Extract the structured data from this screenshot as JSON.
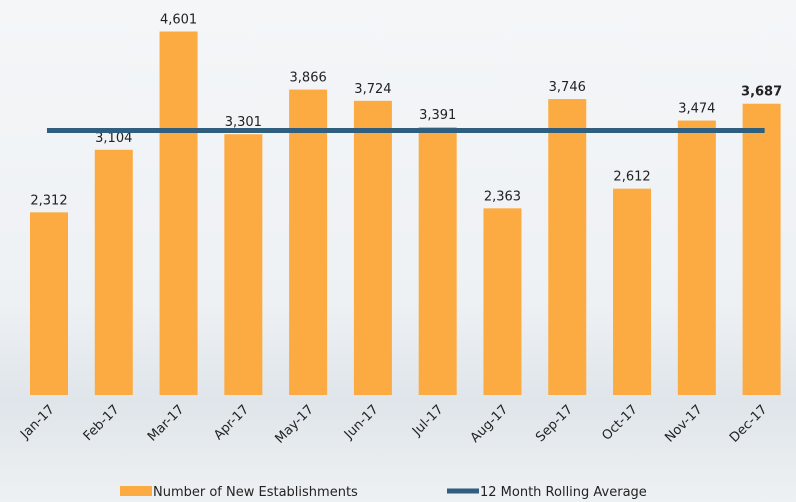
{
  "chart_data": {
    "type": "bar",
    "categories": [
      "Jan-17",
      "Feb-17",
      "Mar-17",
      "Apr-17",
      "May-17",
      "Jun-17",
      "Jul-17",
      "Aug-17",
      "Sep-17",
      "Oct-17",
      "Nov-17",
      "Dec-17"
    ],
    "series": [
      {
        "name": "Number of New Establishments",
        "type": "bar",
        "color": "#fbab41",
        "values": [
          2312,
          3104,
          4601,
          3301,
          3866,
          3724,
          3391,
          2363,
          3746,
          2612,
          3474,
          3687
        ],
        "value_labels": [
          "2,312",
          "3,104",
          "4,601",
          "3,301",
          "3,866",
          "3,724",
          "3,391",
          "2,363",
          "3,746",
          "2,612",
          "3,474",
          "3,687"
        ]
      },
      {
        "name": "12 Month Rolling Average",
        "type": "line",
        "color": "#2f5e7e",
        "values": [
          3348,
          3348,
          3348,
          3348,
          3348,
          3348,
          3348,
          3348,
          3348,
          3348,
          3348,
          3348
        ]
      }
    ],
    "ylim": [
      0,
      5000
    ],
    "legend": "bottom"
  }
}
